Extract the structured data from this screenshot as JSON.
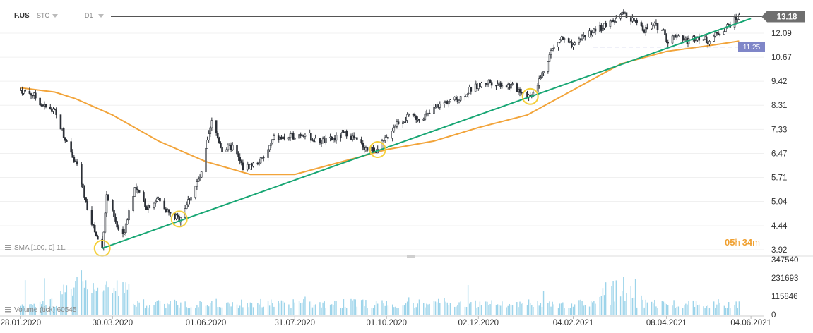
{
  "header": {
    "symbol": "F.US",
    "type": "STC",
    "interval": "D1"
  },
  "timer": {
    "hours": "05",
    "h_unit": "h",
    "minutes": "34",
    "m_unit": "m"
  },
  "indicators": {
    "sma_label": "SMA [100, 0]  11.",
    "volume_label": "Volume  (tick)  60545"
  },
  "colors": {
    "candle": "#2b2f36",
    "sma": "#f2a43a",
    "trendline": "#17a673",
    "price_tag": "#6e6e6e",
    "level_tag": "#7f86c8",
    "volume": "#9dd4ea",
    "circle": "#f5d03a"
  },
  "chart_data": [
    {
      "type": "candlestick",
      "title": "",
      "y_ticks": [
        "12.09",
        "10.67",
        "9.42",
        "8.31",
        "7.33",
        "6.47",
        "5.71",
        "5.04",
        "4.44",
        "3.92"
      ],
      "y_tick_values": [
        12.09,
        10.67,
        9.42,
        8.31,
        7.33,
        6.47,
        5.71,
        5.04,
        4.44,
        3.92
      ],
      "y_scale": "log",
      "ylim": [
        3.92,
        13.5
      ],
      "x_ticks": [
        "28.01.2020",
        "30.03.2020",
        "01.06.2020",
        "31.07.2020",
        "01.10.2020",
        "02.12.2020",
        "04.02.2021",
        "08.04.2021",
        "04.06.2021"
      ],
      "last_price": {
        "value": 13.18,
        "label": "13.18"
      },
      "horizontal_level": {
        "value": 11.25,
        "label": "11.25"
      },
      "close_series": [
        {
          "x": "28.01.2020",
          "y": 9.0
        },
        {
          "x": "05.02.2020",
          "y": 8.8
        },
        {
          "x": "12.02.2020",
          "y": 8.3
        },
        {
          "x": "20.02.2020",
          "y": 8.0
        },
        {
          "x": "27.02.2020",
          "y": 7.0
        },
        {
          "x": "05.03.2020",
          "y": 6.2
        },
        {
          "x": "12.03.2020",
          "y": 5.0
        },
        {
          "x": "19.03.2020",
          "y": 4.2
        },
        {
          "x": "23.03.2020",
          "y": 3.95
        },
        {
          "x": "26.03.2020",
          "y": 5.2
        },
        {
          "x": "02.04.2020",
          "y": 4.4
        },
        {
          "x": "06.04.2020",
          "y": 4.2
        },
        {
          "x": "14.04.2020",
          "y": 5.4
        },
        {
          "x": "22.04.2020",
          "y": 4.9
        },
        {
          "x": "30.04.2020",
          "y": 5.1
        },
        {
          "x": "08.05.2020",
          "y": 4.7
        },
        {
          "x": "14.05.2020",
          "y": 4.6
        },
        {
          "x": "22.05.2020",
          "y": 5.2
        },
        {
          "x": "29.05.2020",
          "y": 5.8
        },
        {
          "x": "05.06.2020",
          "y": 7.6
        },
        {
          "x": "12.06.2020",
          "y": 6.6
        },
        {
          "x": "19.06.2020",
          "y": 6.7
        },
        {
          "x": "26.06.2020",
          "y": 6.0
        },
        {
          "x": "03.07.2020",
          "y": 6.1
        },
        {
          "x": "10.07.2020",
          "y": 6.3
        },
        {
          "x": "17.07.2020",
          "y": 7.0
        },
        {
          "x": "24.07.2020",
          "y": 7.0
        },
        {
          "x": "31.07.2020",
          "y": 7.1
        },
        {
          "x": "07.08.2020",
          "y": 7.2
        },
        {
          "x": "14.08.2020",
          "y": 6.9
        },
        {
          "x": "21.08.2020",
          "y": 6.9
        },
        {
          "x": "28.08.2020",
          "y": 7.0
        },
        {
          "x": "04.09.2020",
          "y": 7.2
        },
        {
          "x": "11.09.2020",
          "y": 6.9
        },
        {
          "x": "18.09.2020",
          "y": 6.6
        },
        {
          "x": "25.09.2020",
          "y": 6.6
        },
        {
          "x": "01.10.2020",
          "y": 7.0
        },
        {
          "x": "08.10.2020",
          "y": 7.6
        },
        {
          "x": "15.10.2020",
          "y": 7.8
        },
        {
          "x": "22.10.2020",
          "y": 7.8
        },
        {
          "x": "29.10.2020",
          "y": 7.9
        },
        {
          "x": "05.11.2020",
          "y": 8.3
        },
        {
          "x": "12.11.2020",
          "y": 8.5
        },
        {
          "x": "19.11.2020",
          "y": 8.6
        },
        {
          "x": "26.11.2020",
          "y": 9.0
        },
        {
          "x": "02.12.2020",
          "y": 9.2
        },
        {
          "x": "09.12.2020",
          "y": 9.4
        },
        {
          "x": "16.12.2020",
          "y": 9.3
        },
        {
          "x": "23.12.2020",
          "y": 9.2
        },
        {
          "x": "30.12.2020",
          "y": 9.0
        },
        {
          "x": "06.01.2021",
          "y": 8.7
        },
        {
          "x": "13.01.2021",
          "y": 9.6
        },
        {
          "x": "20.01.2021",
          "y": 11.0
        },
        {
          "x": "27.01.2021",
          "y": 11.8
        },
        {
          "x": "04.02.2021",
          "y": 11.2
        },
        {
          "x": "10.02.2021",
          "y": 11.9
        },
        {
          "x": "17.02.2021",
          "y": 12.2
        },
        {
          "x": "24.02.2021",
          "y": 12.5
        },
        {
          "x": "03.03.2021",
          "y": 12.8
        },
        {
          "x": "10.03.2021",
          "y": 13.4
        },
        {
          "x": "17.03.2021",
          "y": 12.9
        },
        {
          "x": "24.03.2021",
          "y": 12.3
        },
        {
          "x": "31.03.2021",
          "y": 12.6
        },
        {
          "x": "07.04.2021",
          "y": 12.2
        },
        {
          "x": "08.04.2021",
          "y": 11.6
        },
        {
          "x": "15.04.2021",
          "y": 12.0
        },
        {
          "x": "22.04.2021",
          "y": 11.6
        },
        {
          "x": "29.04.2021",
          "y": 11.9
        },
        {
          "x": "06.05.2021",
          "y": 11.6
        },
        {
          "x": "13.05.2021",
          "y": 12.1
        },
        {
          "x": "20.05.2021",
          "y": 12.6
        },
        {
          "x": "27.05.2021",
          "y": 13.18
        }
      ],
      "sma_series": [
        {
          "x": "28.01.2020",
          "y": 9.1
        },
        {
          "x": "20.02.2020",
          "y": 8.9
        },
        {
          "x": "05.03.2020",
          "y": 8.6
        },
        {
          "x": "30.03.2020",
          "y": 7.9
        },
        {
          "x": "30.04.2020",
          "y": 6.9
        },
        {
          "x": "01.06.2020",
          "y": 6.2
        },
        {
          "x": "01.07.2020",
          "y": 5.8
        },
        {
          "x": "31.07.2020",
          "y": 5.8
        },
        {
          "x": "01.09.2020",
          "y": 6.2
        },
        {
          "x": "01.10.2020",
          "y": 6.6
        },
        {
          "x": "02.11.2020",
          "y": 6.9
        },
        {
          "x": "02.12.2020",
          "y": 7.4
        },
        {
          "x": "04.01.2021",
          "y": 7.9
        },
        {
          "x": "04.02.2021",
          "y": 9.0
        },
        {
          "x": "08.03.2021",
          "y": 10.3
        },
        {
          "x": "08.04.2021",
          "y": 11.0
        },
        {
          "x": "04.05.2021",
          "y": 11.3
        },
        {
          "x": "27.05.2021",
          "y": 11.6
        }
      ],
      "trendline": [
        {
          "x": "23.03.2020",
          "y": 3.95
        },
        {
          "x": "04.06.2021",
          "y": 13.05
        }
      ],
      "touch_points": [
        {
          "x": "23.03.2020",
          "y": 3.95
        },
        {
          "x": "14.05.2020",
          "y": 4.6
        },
        {
          "x": "25.09.2020",
          "y": 6.6
        },
        {
          "x": "06.01.2021",
          "y": 8.7
        }
      ]
    },
    {
      "type": "bar",
      "series_name": "Volume",
      "y_ticks": [
        "347540",
        "231693",
        "115846",
        "0"
      ],
      "y_tick_values": [
        347540,
        231693,
        115846,
        0
      ],
      "ylim": [
        0,
        347540
      ]
    }
  ]
}
